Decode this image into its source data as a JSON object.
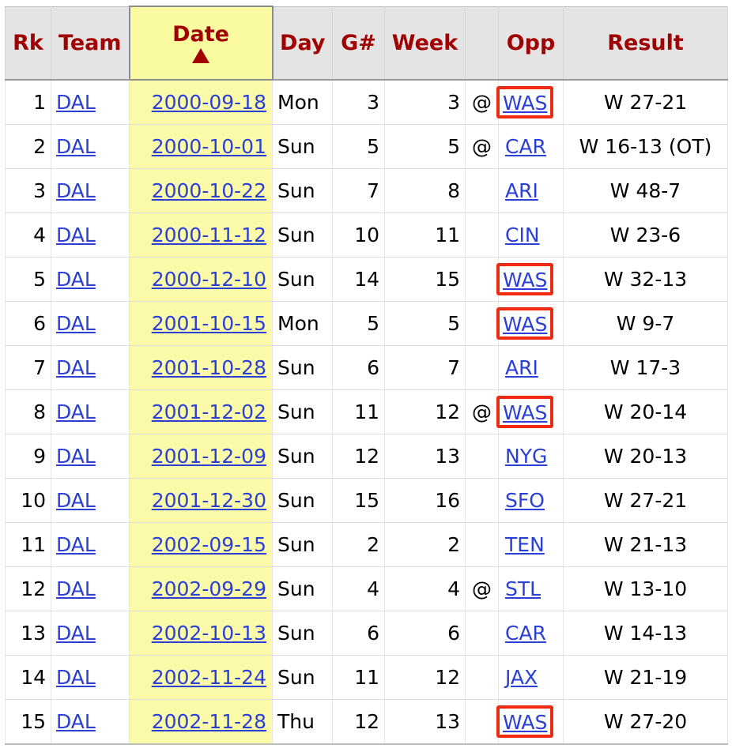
{
  "columns": {
    "rk": "Rk",
    "team": "Team",
    "date": "Date",
    "day": "Day",
    "game": "G#",
    "week": "Week",
    "at": "",
    "opp": "Opp",
    "result": "Result"
  },
  "sort": {
    "column": "date",
    "direction": "ascending",
    "icon": "sort-arrow-up-icon",
    "color": "#a00000"
  },
  "colors": {
    "header_text": "#a00000",
    "link": "#2a3fd6",
    "sorted_bg": "#fafaa8",
    "highlight_border": "#ee2a10"
  },
  "rows": [
    {
      "rk": "1",
      "team": "DAL",
      "date": "2000-09-18",
      "day": "Mon",
      "game": "3",
      "week": "3",
      "at": "@",
      "opp": "WAS",
      "result": "W 27-21",
      "highlight": true
    },
    {
      "rk": "2",
      "team": "DAL",
      "date": "2000-10-01",
      "day": "Sun",
      "game": "5",
      "week": "5",
      "at": "@",
      "opp": "CAR",
      "result": "W 16-13 (OT)",
      "highlight": false
    },
    {
      "rk": "3",
      "team": "DAL",
      "date": "2000-10-22",
      "day": "Sun",
      "game": "7",
      "week": "8",
      "at": "",
      "opp": "ARI",
      "result": "W 48-7",
      "highlight": false
    },
    {
      "rk": "4",
      "team": "DAL",
      "date": "2000-11-12",
      "day": "Sun",
      "game": "10",
      "week": "11",
      "at": "",
      "opp": "CIN",
      "result": "W 23-6",
      "highlight": false
    },
    {
      "rk": "5",
      "team": "DAL",
      "date": "2000-12-10",
      "day": "Sun",
      "game": "14",
      "week": "15",
      "at": "",
      "opp": "WAS",
      "result": "W 32-13",
      "highlight": true
    },
    {
      "rk": "6",
      "team": "DAL",
      "date": "2001-10-15",
      "day": "Mon",
      "game": "5",
      "week": "5",
      "at": "",
      "opp": "WAS",
      "result": "W 9-7",
      "highlight": true
    },
    {
      "rk": "7",
      "team": "DAL",
      "date": "2001-10-28",
      "day": "Sun",
      "game": "6",
      "week": "7",
      "at": "",
      "opp": "ARI",
      "result": "W 17-3",
      "highlight": false
    },
    {
      "rk": "8",
      "team": "DAL",
      "date": "2001-12-02",
      "day": "Sun",
      "game": "11",
      "week": "12",
      "at": "@",
      "opp": "WAS",
      "result": "W 20-14",
      "highlight": true
    },
    {
      "rk": "9",
      "team": "DAL",
      "date": "2001-12-09",
      "day": "Sun",
      "game": "12",
      "week": "13",
      "at": "",
      "opp": "NYG",
      "result": "W 20-13",
      "highlight": false
    },
    {
      "rk": "10",
      "team": "DAL",
      "date": "2001-12-30",
      "day": "Sun",
      "game": "15",
      "week": "16",
      "at": "",
      "opp": "SFO",
      "result": "W 27-21",
      "highlight": false
    },
    {
      "rk": "11",
      "team": "DAL",
      "date": "2002-09-15",
      "day": "Sun",
      "game": "2",
      "week": "2",
      "at": "",
      "opp": "TEN",
      "result": "W 21-13",
      "highlight": false
    },
    {
      "rk": "12",
      "team": "DAL",
      "date": "2002-09-29",
      "day": "Sun",
      "game": "4",
      "week": "4",
      "at": "@",
      "opp": "STL",
      "result": "W 13-10",
      "highlight": false
    },
    {
      "rk": "13",
      "team": "DAL",
      "date": "2002-10-13",
      "day": "Sun",
      "game": "6",
      "week": "6",
      "at": "",
      "opp": "CAR",
      "result": "W 14-13",
      "highlight": false
    },
    {
      "rk": "14",
      "team": "DAL",
      "date": "2002-11-24",
      "day": "Sun",
      "game": "11",
      "week": "12",
      "at": "",
      "opp": "JAX",
      "result": "W 21-19",
      "highlight": false
    },
    {
      "rk": "15",
      "team": "DAL",
      "date": "2002-11-28",
      "day": "Thu",
      "game": "12",
      "week": "13",
      "at": "",
      "opp": "WAS",
      "result": "W 27-20",
      "highlight": true
    }
  ]
}
